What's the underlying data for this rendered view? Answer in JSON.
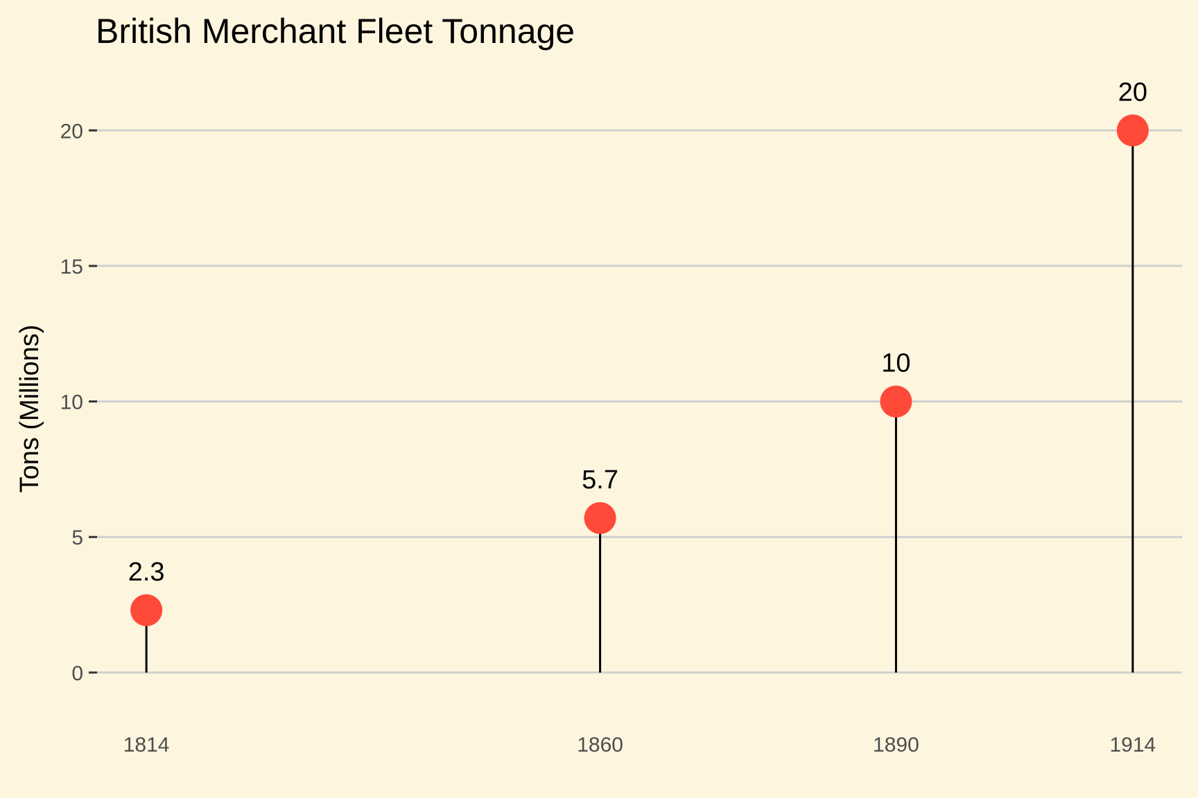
{
  "chart_data": {
    "type": "lollipop",
    "title": "British Merchant Fleet Tonnage",
    "xlabel": "",
    "ylabel": "Tons (Millions)",
    "x": [
      1814,
      1860,
      1890,
      1914
    ],
    "x_tick_labels": [
      "1814",
      "1860",
      "1890",
      "1914"
    ],
    "values": [
      2.3,
      5.7,
      10,
      20
    ],
    "data_labels": [
      "2.3",
      "5.7",
      "10",
      "20"
    ],
    "xlim": [
      1809,
      1919
    ],
    "ylim": [
      -1,
      22
    ],
    "y_ticks": [
      0,
      5,
      10,
      15,
      20
    ],
    "y_tick_labels": [
      "0",
      "5",
      "10",
      "15",
      "20"
    ],
    "grid": "horizontal",
    "legend": "none",
    "colors": {
      "background": "#FDF5DE",
      "point": "#FF4A3A",
      "stem": "#000000",
      "grid": "#CFCFCF"
    }
  }
}
